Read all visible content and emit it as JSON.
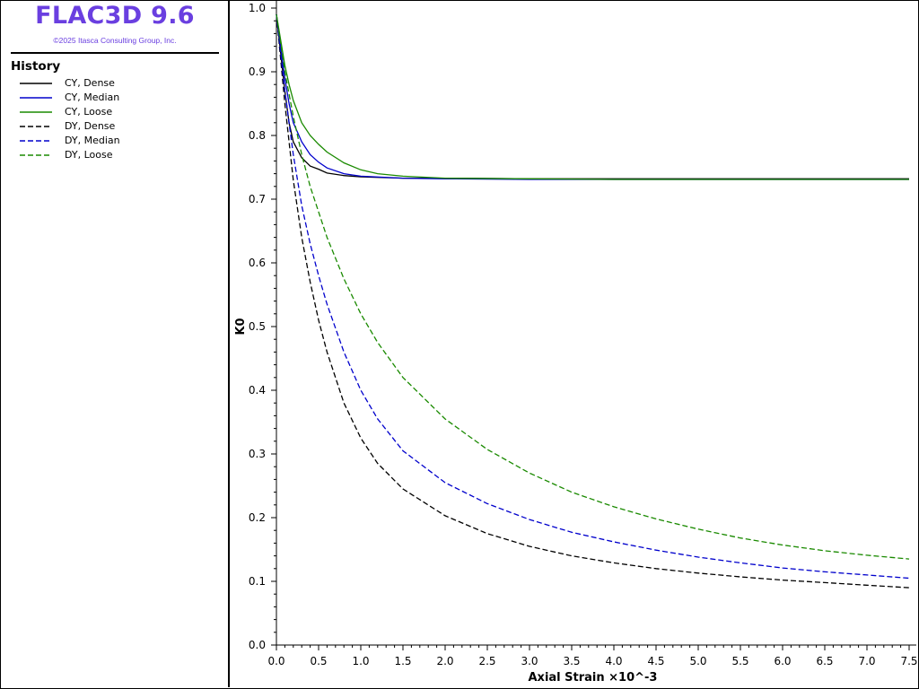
{
  "app": {
    "title": "FLAC3D 9.6",
    "copyright": "©2025 Itasca Consulting Group, Inc.",
    "brand_color": "#6a3fe0"
  },
  "history": {
    "heading": "History"
  },
  "chart_data": {
    "type": "line",
    "xlabel": "Axial Strain ×10^-3",
    "ylabel": "K0",
    "xlim": [
      0,
      7.5
    ],
    "ylim": [
      0,
      1
    ],
    "x_ticks": [
      "0.0",
      "0.5",
      "1.0",
      "1.5",
      "2.0",
      "2.5",
      "3.0",
      "3.5",
      "4.0",
      "4.5",
      "5.0",
      "5.5",
      "6.0",
      "6.5",
      "7.0",
      "7.5"
    ],
    "y_ticks": [
      "0.0",
      "0.1",
      "0.2",
      "0.3",
      "0.4",
      "0.5",
      "0.6",
      "0.7",
      "0.8",
      "0.9",
      "1.0"
    ],
    "grid": false,
    "legend_placement": "left-panel",
    "series": [
      {
        "name": "CY, Dense",
        "color": "#000000",
        "dashed": false,
        "x": [
          0,
          0.05,
          0.1,
          0.15,
          0.2,
          0.3,
          0.4,
          0.5,
          0.6,
          0.8,
          1.0,
          1.5,
          2.0,
          3.0,
          4.0,
          5.0,
          6.0,
          7.0,
          7.5
        ],
        "y": [
          0.99,
          0.93,
          0.87,
          0.82,
          0.79,
          0.765,
          0.752,
          0.747,
          0.741,
          0.737,
          0.735,
          0.733,
          0.733,
          0.732,
          0.732,
          0.732,
          0.732,
          0.732,
          0.732
        ]
      },
      {
        "name": "CY, Median",
        "color": "#0000cc",
        "dashed": false,
        "x": [
          0,
          0.05,
          0.1,
          0.15,
          0.2,
          0.3,
          0.4,
          0.5,
          0.6,
          0.8,
          1.0,
          1.5,
          2.0,
          3.0,
          4.0,
          5.0,
          6.0,
          7.0,
          7.5
        ],
        "y": [
          0.99,
          0.94,
          0.89,
          0.85,
          0.82,
          0.79,
          0.77,
          0.758,
          0.749,
          0.74,
          0.736,
          0.733,
          0.732,
          0.731,
          0.731,
          0.731,
          0.731,
          0.731,
          0.731
        ]
      },
      {
        "name": "CY, Loose",
        "color": "#1a8a00",
        "dashed": false,
        "x": [
          0,
          0.05,
          0.1,
          0.15,
          0.2,
          0.3,
          0.4,
          0.5,
          0.6,
          0.8,
          1.0,
          1.2,
          1.5,
          2.0,
          3.0,
          4.0,
          5.0,
          6.0,
          7.0,
          7.5
        ],
        "y": [
          0.99,
          0.95,
          0.91,
          0.88,
          0.855,
          0.82,
          0.8,
          0.786,
          0.774,
          0.757,
          0.746,
          0.74,
          0.736,
          0.733,
          0.732,
          0.731,
          0.731,
          0.731,
          0.731,
          0.731
        ]
      },
      {
        "name": "DY, Dense",
        "color": "#000000",
        "dashed": true,
        "x": [
          0,
          0.1,
          0.2,
          0.3,
          0.4,
          0.5,
          0.6,
          0.8,
          1.0,
          1.2,
          1.5,
          2.0,
          2.5,
          3.0,
          3.5,
          4.0,
          4.5,
          5.0,
          5.5,
          6.0,
          6.5,
          7.0,
          7.5
        ],
        "y": [
          0.99,
          0.85,
          0.73,
          0.64,
          0.57,
          0.51,
          0.46,
          0.38,
          0.325,
          0.285,
          0.245,
          0.203,
          0.175,
          0.155,
          0.14,
          0.129,
          0.12,
          0.113,
          0.107,
          0.102,
          0.098,
          0.094,
          0.09
        ]
      },
      {
        "name": "DY, Median",
        "color": "#0000cc",
        "dashed": true,
        "x": [
          0,
          0.1,
          0.2,
          0.3,
          0.4,
          0.5,
          0.6,
          0.8,
          1.0,
          1.2,
          1.5,
          2.0,
          2.5,
          3.0,
          3.5,
          4.0,
          4.5,
          5.0,
          5.5,
          6.0,
          6.5,
          7.0,
          7.5
        ],
        "y": [
          0.99,
          0.87,
          0.77,
          0.69,
          0.63,
          0.58,
          0.535,
          0.46,
          0.4,
          0.355,
          0.305,
          0.255,
          0.222,
          0.197,
          0.177,
          0.162,
          0.149,
          0.138,
          0.129,
          0.121,
          0.115,
          0.11,
          0.105
        ]
      },
      {
        "name": "DY, Loose",
        "color": "#1a8a00",
        "dashed": true,
        "x": [
          0,
          0.1,
          0.2,
          0.3,
          0.4,
          0.5,
          0.6,
          0.8,
          1.0,
          1.2,
          1.5,
          2.0,
          2.5,
          3.0,
          3.5,
          4.0,
          4.5,
          5.0,
          5.5,
          6.0,
          6.5,
          7.0,
          7.5
        ],
        "y": [
          0.99,
          0.9,
          0.83,
          0.77,
          0.72,
          0.68,
          0.64,
          0.575,
          0.52,
          0.475,
          0.42,
          0.355,
          0.307,
          0.27,
          0.24,
          0.217,
          0.198,
          0.182,
          0.168,
          0.157,
          0.148,
          0.141,
          0.135
        ]
      }
    ]
  }
}
